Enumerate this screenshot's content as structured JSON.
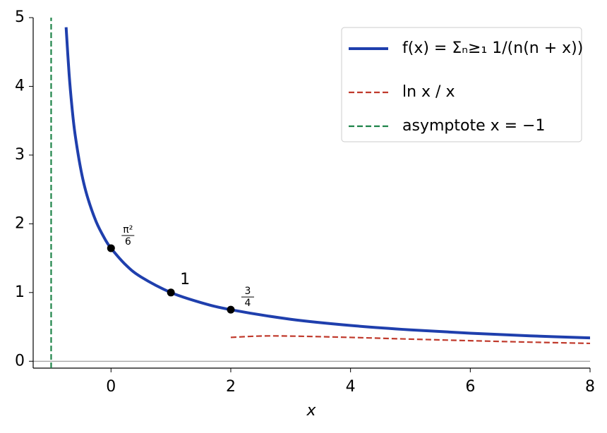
{
  "chart_data": {
    "type": "line",
    "xlabel": "x",
    "xlim": [
      -1.3,
      8
    ],
    "ylim": [
      -0.1,
      5
    ],
    "xticks": [
      0,
      2,
      4,
      6,
      8
    ],
    "yticks": [
      0,
      1,
      2,
      3,
      4,
      5
    ],
    "hline": {
      "y": 0,
      "color": "#888888"
    },
    "legend": "upper right",
    "series": [
      {
        "name": "f(x) = Σₙ≥₁ 1/(n(n + x))",
        "color": "#1f3fad",
        "style": "solid",
        "x": [
          -0.75,
          -0.7,
          -0.65,
          -0.6,
          -0.5,
          -0.4,
          -0.25,
          -0.1,
          0,
          0.25,
          0.5,
          1,
          1.5,
          2,
          3,
          4,
          5,
          6,
          7,
          8
        ],
        "values": [
          4.86,
          4.18,
          3.68,
          3.3,
          2.773,
          2.41,
          2.034,
          1.776,
          1.645,
          1.399,
          1.227,
          1,
          0.854,
          0.75,
          0.611,
          0.521,
          0.457,
          0.408,
          0.37,
          0.34
        ]
      },
      {
        "name": "ln x / x",
        "color": "#c0392b",
        "style": "dashed",
        "x": [
          2,
          2.5,
          3,
          4,
          5,
          6,
          7,
          8
        ],
        "values": [
          0.347,
          0.367,
          0.366,
          0.347,
          0.322,
          0.299,
          0.278,
          0.26
        ]
      },
      {
        "name": "asymptote x = −1",
        "color": "#1e8449",
        "style": "dashed",
        "x": [
          -1,
          -1
        ],
        "values": [
          -0.1,
          5
        ]
      }
    ],
    "points": [
      {
        "x": 0,
        "y": 1.645,
        "label": {
          "num": "π²",
          "den": "6"
        }
      },
      {
        "x": 1,
        "y": 1,
        "label": "1"
      },
      {
        "x": 2,
        "y": 0.75,
        "label": {
          "num": "3",
          "den": "4"
        }
      }
    ]
  }
}
